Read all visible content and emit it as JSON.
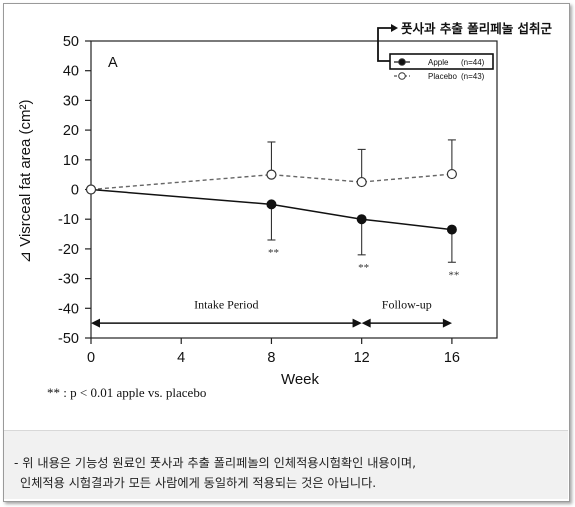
{
  "callout": {
    "label": "풋사과 추출 폴리페놀 섭취군"
  },
  "note": "** : p < 0.01 apple vs. placebo",
  "footnote": {
    "line1": "- 위 내용은 기능성 원료인 풋사과 추출 폴리페놀의 인체적용시험확인 내용이며,",
    "line2": "인체적용 시험결과가 모든 사람에게 동일하게 적용되는 것은 아닙니다."
  },
  "chart_data": {
    "type": "line",
    "panel_label": "A",
    "xlabel": "Week",
    "ylabel": "⊿ Visrceal fat area (cm²)",
    "xlim": [
      0,
      18
    ],
    "ylim": [
      -50,
      50
    ],
    "xticks": [
      0,
      4,
      8,
      12,
      16
    ],
    "yticks": [
      50,
      40,
      30,
      20,
      10,
      0,
      -10,
      -20,
      -30,
      -40,
      -50
    ],
    "grid": false,
    "legend_position": "top-right",
    "series": [
      {
        "name": "Apple",
        "n_label": "(n=44)",
        "x": [
          0,
          8,
          12,
          16
        ],
        "y": [
          0,
          -5,
          -10,
          -13.5
        ],
        "err_low": [
          0,
          12,
          12,
          11
        ],
        "marker": "filled-circle",
        "line_style": "solid",
        "color": "#111111"
      },
      {
        "name": "Placebo",
        "n_label": "(n=43)",
        "x": [
          0,
          8,
          12,
          16
        ],
        "y": [
          0,
          5,
          2.5,
          5.2
        ],
        "err_high": [
          0,
          11,
          11,
          11.5
        ],
        "marker": "open-circle",
        "line_style": "dashed",
        "color": "#555555"
      }
    ],
    "significance": [
      {
        "x": 8,
        "label": "**"
      },
      {
        "x": 12,
        "label": "**"
      },
      {
        "x": 16,
        "label": "**"
      }
    ],
    "periods": [
      {
        "label": "Intake Period",
        "x_start": 0,
        "x_end": 12
      },
      {
        "label": "Follow-up",
        "x_start": 12,
        "x_end": 16
      }
    ]
  }
}
